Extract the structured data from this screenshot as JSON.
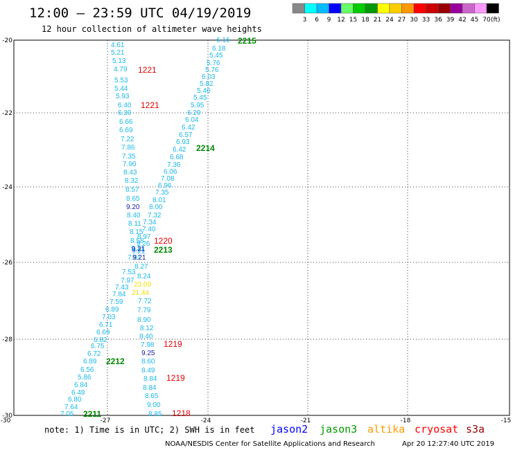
{
  "header": {
    "title": "12:00 – 23:59 UTC 04/19/2019",
    "subtitle": "12 hour collection of altimeter wave heights"
  },
  "legend": {
    "colors": [
      "#888888",
      "#00ffff",
      "#00bbff",
      "#0000ff",
      "#66ff66",
      "#00cc00",
      "#009900",
      "#ffff00",
      "#ffcc00",
      "#ff9900",
      "#ff0000",
      "#cc0000",
      "#990000",
      "#990099",
      "#cc66cc",
      "#ff99ff",
      "#000000"
    ],
    "labels": [
      "3",
      "6",
      "9",
      "12",
      "15",
      "18",
      "21",
      "24",
      "27",
      "30",
      "33",
      "36",
      "39",
      "42",
      "45",
      "70"
    ],
    "unit": "(ft)"
  },
  "axes": {
    "lat_labels": [
      "-20",
      "-22",
      "-24",
      "-26",
      "-28",
      "-30"
    ],
    "lon_labels": [
      "-30",
      "-27",
      "-24",
      "-21",
      "-18",
      "-15"
    ]
  },
  "observations": {
    "cyan": [
      "4.61",
      "5.21",
      "5.13",
      "4.79",
      "5.53",
      "5.44",
      "5.93",
      "6.40",
      "6.39",
      "6.66",
      "6.69",
      "7.22",
      "7.86",
      "7.35",
      "7.90",
      "8.43",
      "8.32",
      "8.57",
      "8.65",
      "8.40",
      "8.11",
      "8.15",
      "8.58",
      "9.31",
      "7.91",
      "7.53",
      "7.97",
      "7.43",
      "7.84",
      "7.59",
      "6.89",
      "7.03",
      "6.71",
      "6.69",
      "6.82",
      "6.75",
      "6.72",
      "6.89",
      "6.56",
      "5.86",
      "6.84",
      "6.48",
      "6.80",
      "7.64",
      "7.05",
      "6.16",
      "6.18",
      "5.45",
      "5.76",
      "5.76",
      "6.03",
      "5.82",
      "5.46",
      "5.45",
      "5.95",
      "6.29",
      "6.04",
      "6.42",
      "6.57",
      "6.93",
      "6.42",
      "6.68",
      "7.36",
      "6.06",
      "7.08",
      "6.96",
      "7.35",
      "8.01",
      "8.00",
      "7.32",
      "7.34",
      "7.40",
      "8.97",
      "9.26",
      "9.21",
      "8.27",
      "8.24",
      "7.72",
      "7.79",
      "8.90",
      "8.12",
      "8.40",
      "7.98",
      "8.60",
      "8.49",
      "8.84",
      "8.84",
      "8.65",
      "9.00",
      "8.85"
    ],
    "navy": [
      "9.20",
      "9.21",
      "9.21",
      "9.25"
    ],
    "yellow": [
      "23.09",
      "21.44"
    ],
    "red_times": [
      "1221",
      "1221",
      "1220",
      "1219",
      "1219",
      "1218"
    ],
    "green_times": [
      "2215",
      "2214",
      "2213",
      "2212",
      "2211"
    ]
  },
  "footer": {
    "note": "note:  1) Time is in UTC;  2) SWH is in feet",
    "satellites": [
      {
        "name": "jason2",
        "color": "#0000ff"
      },
      {
        "name": "jason3",
        "color": "#009900"
      },
      {
        "name": "altika",
        "color": "#ff9900"
      },
      {
        "name": "cryosat",
        "color": "#ff0000"
      },
      {
        "name": "s3a",
        "color": "#990000"
      }
    ],
    "credit": "NOAA/NESDIS Center for Satellite Applications and Research",
    "timestamp": "Apr 20 12:27:40 UTC 2019"
  }
}
